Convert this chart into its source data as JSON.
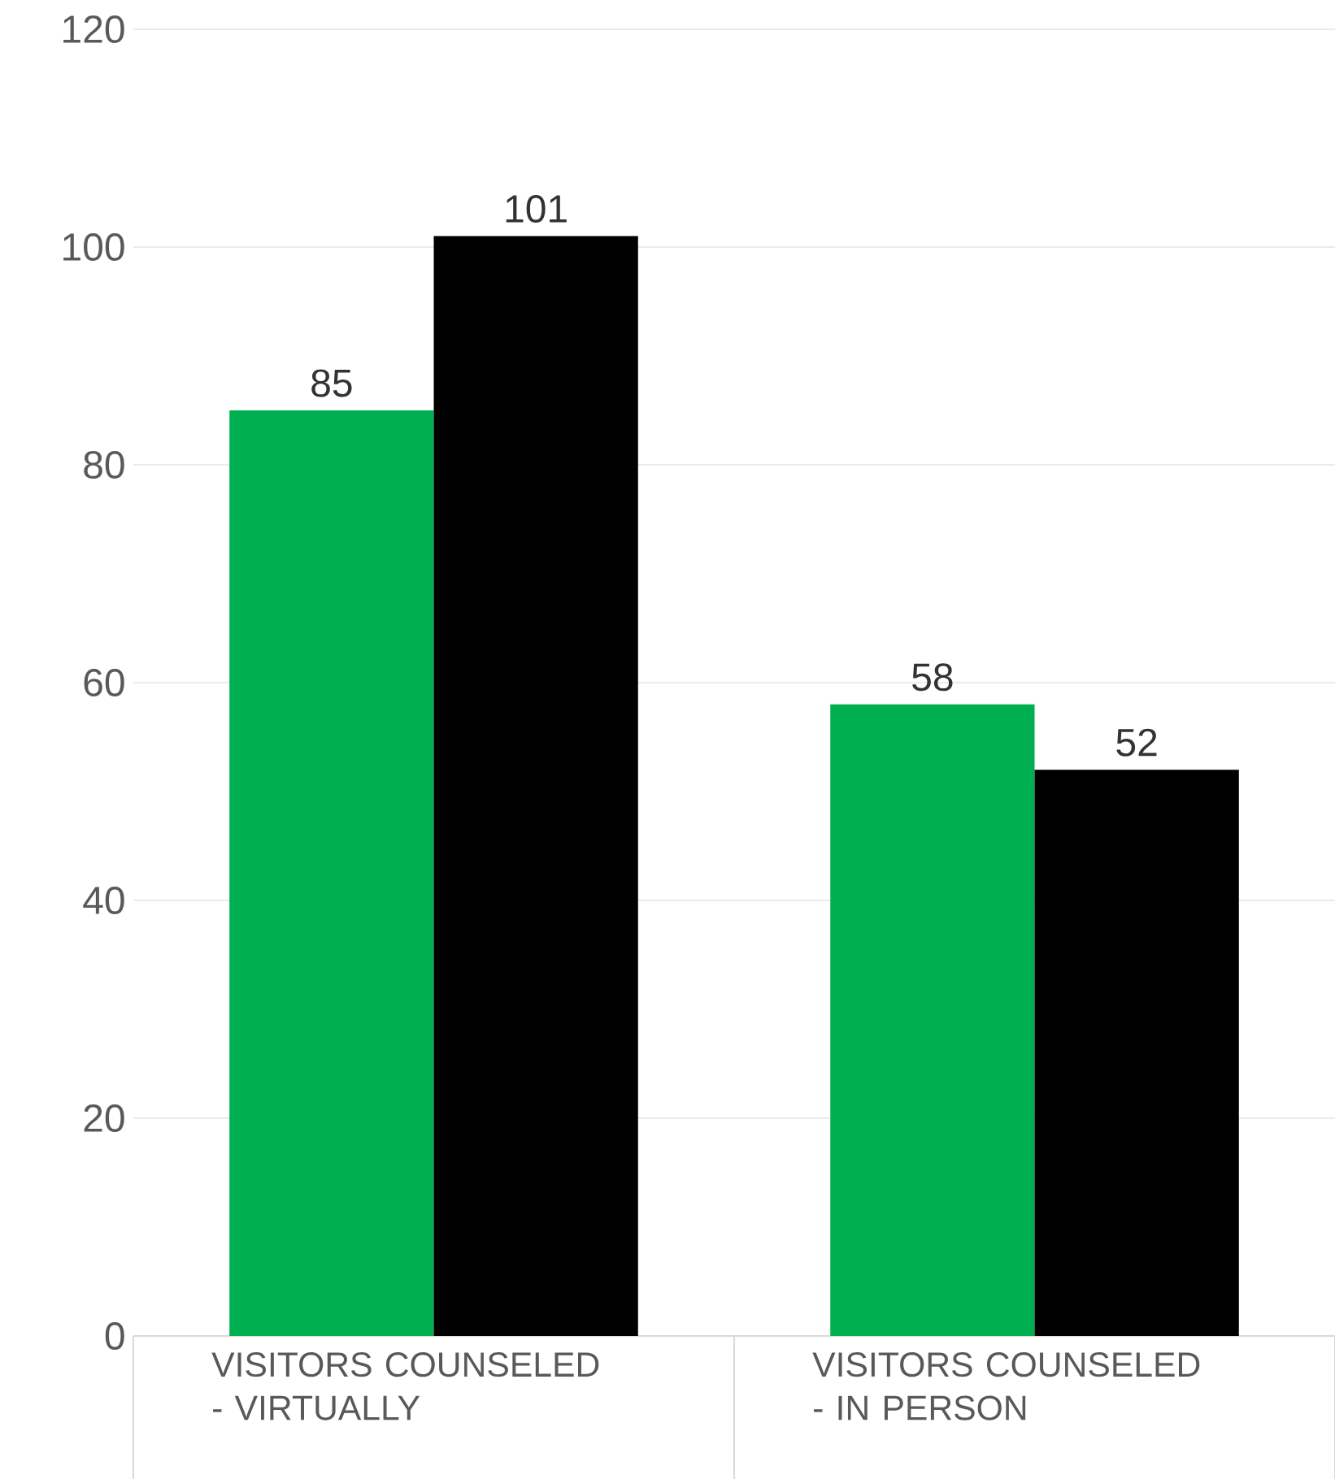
{
  "chart_data": {
    "type": "bar",
    "categories": [
      "VISITORS COUNSELED - VIRTUALLY",
      "VISITORS COUNSELED - IN PERSON"
    ],
    "series": [
      {
        "color": "#00b050",
        "values": [
          85,
          58
        ]
      },
      {
        "color": "#000000",
        "values": [
          101,
          52
        ]
      }
    ],
    "ylim": [
      0,
      120
    ],
    "yticks": [
      0,
      20,
      40,
      60,
      80,
      100,
      120
    ],
    "grid": "y",
    "data_labels": true
  }
}
